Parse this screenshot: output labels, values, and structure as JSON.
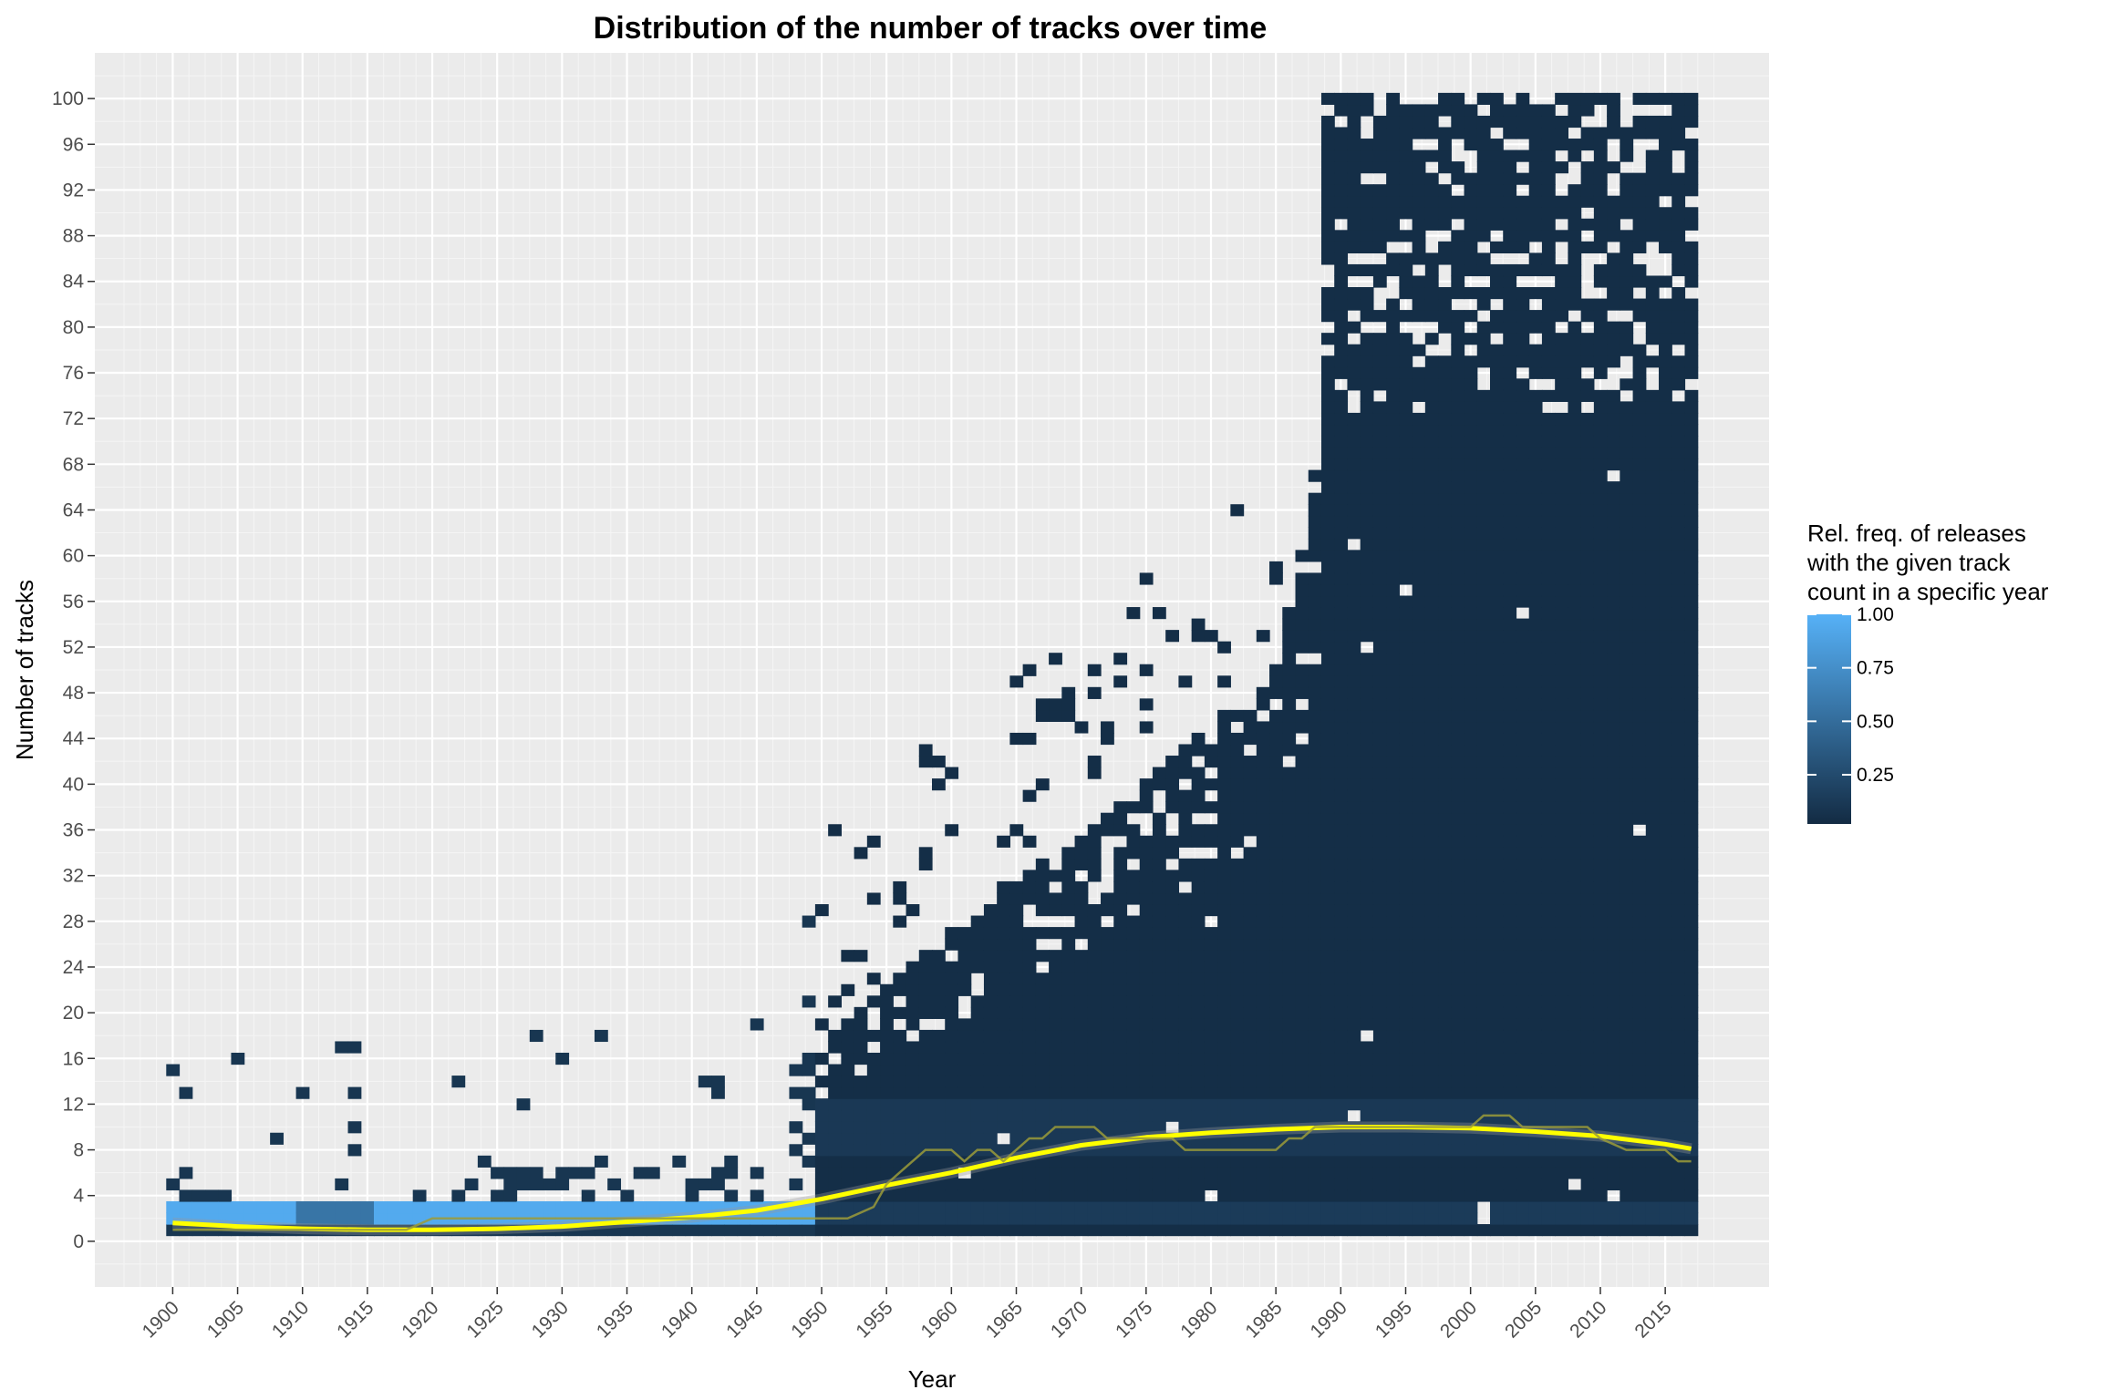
{
  "chart_data": {
    "type": "heatmap",
    "title": "Distribution of the number of tracks over time",
    "xlabel": "Year",
    "ylabel": "Number of tracks",
    "xlim": [
      1894,
      2023
    ],
    "ylim": [
      -4,
      104
    ],
    "x_ticks": [
      "1900",
      "1905",
      "1910",
      "1915",
      "1920",
      "1925",
      "1930",
      "1935",
      "1940",
      "1945",
      "1950",
      "1955",
      "1960",
      "1965",
      "1970",
      "1975",
      "1980",
      "1985",
      "1990",
      "1995",
      "2000",
      "2005",
      "2010",
      "2015"
    ],
    "y_ticks": [
      "0",
      "4",
      "8",
      "12",
      "16",
      "20",
      "24",
      "28",
      "32",
      "36",
      "40",
      "44",
      "48",
      "52",
      "56",
      "60",
      "64",
      "68",
      "72",
      "76",
      "80",
      "84",
      "88",
      "92",
      "96",
      "100"
    ],
    "legend": {
      "title": [
        "Rel. freq. of releases",
        "with the given track",
        "count in a specific year"
      ],
      "labels": [
        "1.00",
        "0.75",
        "0.50",
        "0.25"
      ],
      "values": [
        1.0,
        0.75,
        0.5,
        0.25
      ],
      "color_low": "#132B43",
      "color_high": "#56B1F7",
      "placement": "right"
    },
    "panel_background": "#EBEBEB",
    "grid": true,
    "series": [
      {
        "type": "smooth",
        "color": "#FFFF00",
        "x": [
          1900,
          1905,
          1910,
          1915,
          1920,
          1925,
          1930,
          1935,
          1940,
          1945,
          1950,
          1955,
          1960,
          1965,
          1970,
          1975,
          1980,
          1985,
          1990,
          1995,
          2000,
          2005,
          2010,
          2015,
          2017
        ],
        "values": [
          1.6,
          1.3,
          1.1,
          1.0,
          1.0,
          1.1,
          1.3,
          1.7,
          2.1,
          2.7,
          3.7,
          4.9,
          6.0,
          7.3,
          8.4,
          9.1,
          9.5,
          9.8,
          10.0,
          10.0,
          9.9,
          9.6,
          9.2,
          8.5,
          8.1
        ]
      },
      {
        "type": "median",
        "color": "#9B9B3A",
        "x": [
          1900,
          1902,
          1904,
          1906,
          1908,
          1910,
          1912,
          1914,
          1916,
          1918,
          1920,
          1922,
          1924,
          1926,
          1928,
          1930,
          1932,
          1934,
          1936,
          1938,
          1940,
          1942,
          1944,
          1946,
          1948,
          1950,
          1952,
          1954,
          1955,
          1956,
          1957,
          1958,
          1959,
          1960,
          1961,
          1962,
          1963,
          1964,
          1965,
          1966,
          1967,
          1968,
          1969,
          1970,
          1971,
          1972,
          1974,
          1976,
          1977,
          1978,
          1980,
          1982,
          1984,
          1985,
          1986,
          1987,
          1988,
          1990,
          1995,
          2000,
          2001,
          2002,
          2003,
          2004,
          2005,
          2008,
          2009,
          2010,
          2012,
          2014,
          2015,
          2016,
          2017
        ],
        "values": [
          1,
          1,
          1,
          1,
          1,
          1,
          1,
          1,
          1,
          1,
          2,
          2,
          2,
          2,
          2,
          2,
          2,
          2,
          2,
          2,
          2,
          2,
          2,
          2,
          2,
          2,
          2,
          3,
          5,
          6,
          7,
          8,
          8,
          8,
          7,
          8,
          8,
          7,
          8,
          9,
          9,
          10,
          10,
          10,
          10,
          9,
          9,
          9,
          9,
          8,
          8,
          8,
          8,
          8,
          9,
          9,
          10,
          10,
          10,
          10,
          11,
          11,
          11,
          10,
          10,
          10,
          10,
          9,
          8,
          8,
          8,
          7,
          7
        ]
      }
    ]
  }
}
